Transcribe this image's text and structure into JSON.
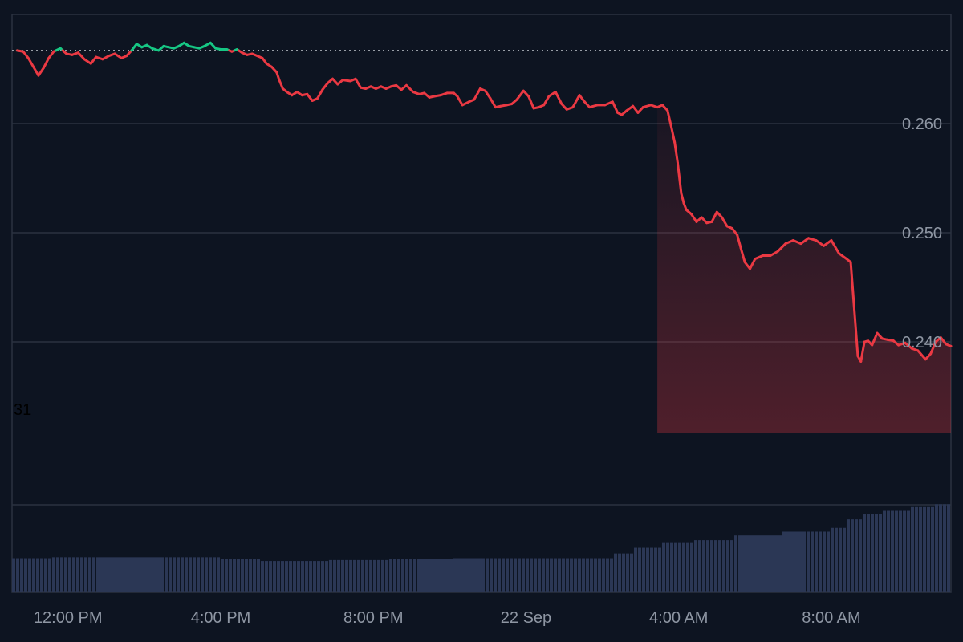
{
  "chart_data": {
    "type": "line",
    "stray_label": "31",
    "colors": {
      "background": "#0d1421",
      "up": "#16c784",
      "down": "#ea3943",
      "grid": "#2b3240",
      "baseline": "#c6cbd3",
      "volume": "#2b3755",
      "tick_text": "#8e96a3"
    },
    "grid": true,
    "ylim": [
      0.225,
      0.27
    ],
    "y_ticks": [
      {
        "value": 0.26,
        "label": "0.260"
      },
      {
        "value": 0.25,
        "label": "0.250"
      },
      {
        "value": 0.24,
        "label": "0.240"
      }
    ],
    "x_ticks": [
      {
        "hour": 1,
        "label": "12:00 PM"
      },
      {
        "hour": 4,
        "label": "4:00 PM"
      },
      {
        "hour": 7,
        "label": "8:00 PM"
      },
      {
        "hour": 10,
        "label": "22 Sep"
      },
      {
        "hour": 13,
        "label": "4:00 AM"
      },
      {
        "hour": 16,
        "label": "8:00 AM"
      }
    ],
    "baseline_value": 0.2667,
    "price_series": [
      [
        0.0,
        0.2667
      ],
      [
        0.12,
        0.2666
      ],
      [
        0.22,
        0.266
      ],
      [
        0.32,
        0.2652
      ],
      [
        0.42,
        0.2644
      ],
      [
        0.52,
        0.2651
      ],
      [
        0.62,
        0.266
      ],
      [
        0.72,
        0.2666
      ],
      [
        0.85,
        0.2669
      ],
      [
        0.97,
        0.2664
      ],
      [
        1.08,
        0.2663
      ],
      [
        1.2,
        0.2665
      ],
      [
        1.32,
        0.2659
      ],
      [
        1.45,
        0.2655
      ],
      [
        1.55,
        0.2661
      ],
      [
        1.68,
        0.2659
      ],
      [
        1.8,
        0.2662
      ],
      [
        1.92,
        0.2664
      ],
      [
        2.05,
        0.266
      ],
      [
        2.15,
        0.2662
      ],
      [
        2.25,
        0.2667
      ],
      [
        2.35,
        0.2673
      ],
      [
        2.45,
        0.267
      ],
      [
        2.55,
        0.2672
      ],
      [
        2.65,
        0.2669
      ],
      [
        2.78,
        0.2667
      ],
      [
        2.88,
        0.2671
      ],
      [
        2.98,
        0.267
      ],
      [
        3.08,
        0.2669
      ],
      [
        3.18,
        0.2671
      ],
      [
        3.28,
        0.2674
      ],
      [
        3.38,
        0.2671
      ],
      [
        3.48,
        0.267
      ],
      [
        3.58,
        0.2669
      ],
      [
        3.68,
        0.2671
      ],
      [
        3.8,
        0.2674
      ],
      [
        3.9,
        0.2669
      ],
      [
        4.0,
        0.2668
      ],
      [
        4.12,
        0.2668
      ],
      [
        4.22,
        0.2666
      ],
      [
        4.32,
        0.2668
      ],
      [
        4.42,
        0.2665
      ],
      [
        4.52,
        0.2663
      ],
      [
        4.62,
        0.2664
      ],
      [
        4.72,
        0.2662
      ],
      [
        4.82,
        0.266
      ],
      [
        4.9,
        0.2655
      ],
      [
        5.0,
        0.2652
      ],
      [
        5.1,
        0.2647
      ],
      [
        5.15,
        0.264
      ],
      [
        5.22,
        0.2632
      ],
      [
        5.3,
        0.2629
      ],
      [
        5.4,
        0.2626
      ],
      [
        5.5,
        0.2629
      ],
      [
        5.6,
        0.2626
      ],
      [
        5.7,
        0.2627
      ],
      [
        5.8,
        0.2621
      ],
      [
        5.9,
        0.2623
      ],
      [
        6.0,
        0.2631
      ],
      [
        6.1,
        0.2637
      ],
      [
        6.2,
        0.2641
      ],
      [
        6.3,
        0.2636
      ],
      [
        6.4,
        0.264
      ],
      [
        6.55,
        0.2639
      ],
      [
        6.65,
        0.2641
      ],
      [
        6.75,
        0.2633
      ],
      [
        6.85,
        0.2632
      ],
      [
        6.95,
        0.2634
      ],
      [
        7.05,
        0.2632
      ],
      [
        7.15,
        0.2634
      ],
      [
        7.25,
        0.2632
      ],
      [
        7.35,
        0.2634
      ],
      [
        7.45,
        0.2635
      ],
      [
        7.55,
        0.2631
      ],
      [
        7.65,
        0.2635
      ],
      [
        7.78,
        0.2629
      ],
      [
        7.9,
        0.2627
      ],
      [
        8.0,
        0.2628
      ],
      [
        8.1,
        0.2624
      ],
      [
        8.2,
        0.2625
      ],
      [
        8.32,
        0.2626
      ],
      [
        8.45,
        0.2628
      ],
      [
        8.58,
        0.2628
      ],
      [
        8.65,
        0.2625
      ],
      [
        8.75,
        0.2617
      ],
      [
        8.88,
        0.262
      ],
      [
        8.98,
        0.2622
      ],
      [
        9.1,
        0.2632
      ],
      [
        9.2,
        0.263
      ],
      [
        9.3,
        0.2623
      ],
      [
        9.4,
        0.2615
      ],
      [
        9.5,
        0.2616
      ],
      [
        9.62,
        0.2617
      ],
      [
        9.72,
        0.2618
      ],
      [
        9.82,
        0.2622
      ],
      [
        9.95,
        0.263
      ],
      [
        10.05,
        0.2625
      ],
      [
        10.15,
        0.2614
      ],
      [
        10.25,
        0.2615
      ],
      [
        10.35,
        0.2617
      ],
      [
        10.45,
        0.2625
      ],
      [
        10.58,
        0.2629
      ],
      [
        10.7,
        0.2618
      ],
      [
        10.8,
        0.2613
      ],
      [
        10.92,
        0.2615
      ],
      [
        11.05,
        0.2626
      ],
      [
        11.15,
        0.262
      ],
      [
        11.25,
        0.2615
      ],
      [
        11.4,
        0.2617
      ],
      [
        11.55,
        0.2617
      ],
      [
        11.7,
        0.262
      ],
      [
        11.8,
        0.261
      ],
      [
        11.88,
        0.2608
      ],
      [
        11.98,
        0.2612
      ],
      [
        12.1,
        0.2616
      ],
      [
        12.2,
        0.261
      ],
      [
        12.3,
        0.2615
      ],
      [
        12.45,
        0.2617
      ],
      [
        12.58,
        0.2615
      ],
      [
        12.68,
        0.2617
      ],
      [
        12.78,
        0.2612
      ],
      [
        12.85,
        0.2598
      ],
      [
        12.92,
        0.2583
      ],
      [
        12.98,
        0.2564
      ],
      [
        13.05,
        0.2536
      ],
      [
        13.1,
        0.2527
      ],
      [
        13.15,
        0.2521
      ],
      [
        13.25,
        0.2517
      ],
      [
        13.35,
        0.251
      ],
      [
        13.45,
        0.2514
      ],
      [
        13.55,
        0.2509
      ],
      [
        13.65,
        0.251
      ],
      [
        13.75,
        0.2519
      ],
      [
        13.85,
        0.2514
      ],
      [
        13.95,
        0.2506
      ],
      [
        14.05,
        0.2504
      ],
      [
        14.15,
        0.2498
      ],
      [
        14.22,
        0.2486
      ],
      [
        14.3,
        0.2473
      ],
      [
        14.4,
        0.2467
      ],
      [
        14.5,
        0.2476
      ],
      [
        14.65,
        0.2479
      ],
      [
        14.8,
        0.2479
      ],
      [
        14.95,
        0.2483
      ],
      [
        15.1,
        0.249
      ],
      [
        15.25,
        0.2493
      ],
      [
        15.4,
        0.249
      ],
      [
        15.55,
        0.2495
      ],
      [
        15.7,
        0.2493
      ],
      [
        15.85,
        0.2488
      ],
      [
        16.0,
        0.2493
      ],
      [
        16.15,
        0.2481
      ],
      [
        16.3,
        0.2476
      ],
      [
        16.38,
        0.2473
      ],
      [
        16.45,
        0.243
      ],
      [
        16.52,
        0.2387
      ],
      [
        16.58,
        0.2382
      ],
      [
        16.65,
        0.24
      ],
      [
        16.72,
        0.2401
      ],
      [
        16.8,
        0.2397
      ],
      [
        16.9,
        0.2408
      ],
      [
        17.0,
        0.2403
      ],
      [
        17.1,
        0.2402
      ],
      [
        17.22,
        0.2401
      ],
      [
        17.32,
        0.2397
      ],
      [
        17.45,
        0.2399
      ],
      [
        17.58,
        0.2394
      ],
      [
        17.7,
        0.2392
      ],
      [
        17.85,
        0.2384
      ],
      [
        17.95,
        0.2389
      ],
      [
        18.05,
        0.24
      ],
      [
        18.15,
        0.2404
      ],
      [
        18.25,
        0.2398
      ],
      [
        18.35,
        0.2396
      ]
    ],
    "volume_note": "cumulative volume bars (rising step profile)",
    "volume_series": [
      [
        0.0,
        0.36
      ],
      [
        0.7,
        0.37
      ],
      [
        4.0,
        0.35
      ],
      [
        4.75,
        0.33
      ],
      [
        6.15,
        0.34
      ],
      [
        7.3,
        0.35
      ],
      [
        8.6,
        0.36
      ],
      [
        11.4,
        0.36
      ],
      [
        11.7,
        0.41
      ],
      [
        12.1,
        0.47
      ],
      [
        12.7,
        0.52
      ],
      [
        13.3,
        0.55
      ],
      [
        14.1,
        0.6
      ],
      [
        15.0,
        0.64
      ],
      [
        16.0,
        0.68
      ],
      [
        16.3,
        0.77
      ],
      [
        16.6,
        0.83
      ],
      [
        17.0,
        0.86
      ],
      [
        17.6,
        0.9
      ],
      [
        18.0,
        0.93
      ],
      [
        18.35,
        0.94
      ]
    ],
    "hour_range": [
      -0.1,
      18.35
    ]
  }
}
